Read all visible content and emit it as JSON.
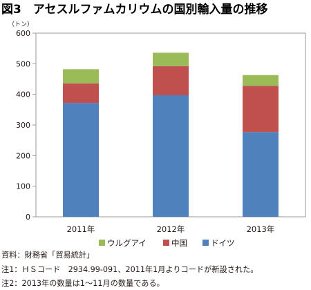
{
  "chart_data": {
    "type": "bar",
    "stacked": true,
    "title": "図3　アセスルファムカリウムの国別輸入量の推移",
    "ylabel": "（トン）",
    "xlabel": "",
    "categories": [
      "2011年",
      "2012年",
      "2013年"
    ],
    "series": [
      {
        "name": "ドイツ",
        "color": "#4f81bd",
        "values": [
          372,
          397,
          277
        ]
      },
      {
        "name": "中国",
        "color": "#c0504d",
        "values": [
          64,
          95,
          151
        ]
      },
      {
        "name": "ウルグアイ",
        "color": "#9bbb59",
        "values": [
          46,
          44,
          35
        ]
      }
    ],
    "ylim": [
      0,
      600
    ],
    "yticks": [
      0,
      100,
      200,
      300,
      400,
      500,
      600
    ],
    "grid": false,
    "legend_position": "bottom"
  },
  "notes": [
    "資料：財務省「貿易統計」",
    "注1：ＨＳコード　2934.99-091、2011年1月よりコードが新設された。",
    "注2：2013年の数量は1～11月の数量である。"
  ]
}
